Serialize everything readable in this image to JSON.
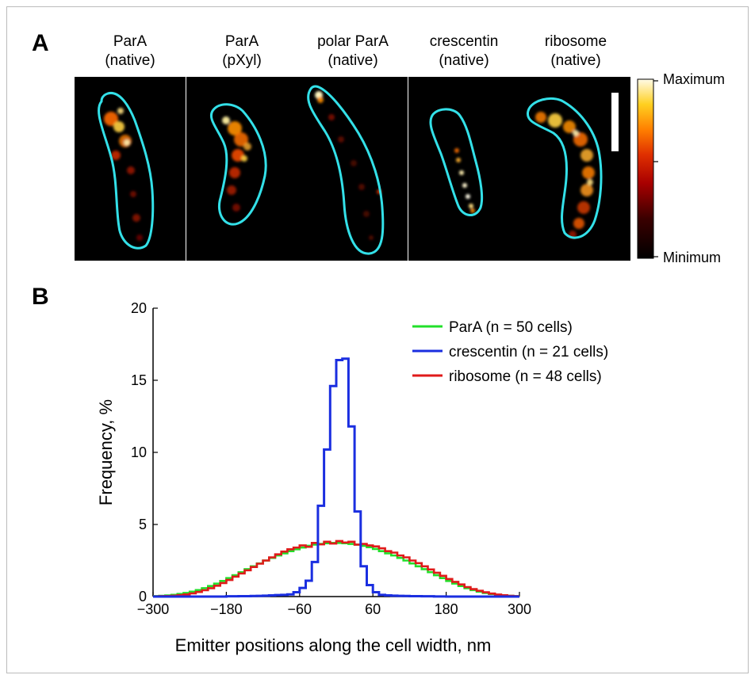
{
  "panel_a": {
    "letter": "A",
    "colorbar": {
      "max_label": "Maximum",
      "min_label": "Minimum"
    },
    "images": [
      {
        "line1": "ParA",
        "line2": "(native)"
      },
      {
        "line1": "ParA",
        "line2": "(pXyl)"
      },
      {
        "line1": "polar ParA",
        "line2": "(native)"
      },
      {
        "line1": "crescentin",
        "line2": "(native)"
      },
      {
        "line1": "ribosome",
        "line2": "(native)"
      }
    ],
    "colors": {
      "outline": "#33e0e8",
      "background": "#000000"
    }
  },
  "panel_b": {
    "letter": "B"
  },
  "chart_data": {
    "type": "line",
    "xlabel": "Emitter positions along the cell width, nm",
    "ylabel": "Frequency, %",
    "xlim": [
      -300,
      300
    ],
    "ylim": [
      0,
      20
    ],
    "xticks": [
      "−300",
      "−180",
      "−60",
      "60",
      "180",
      "300"
    ],
    "xtick_values": [
      -300,
      -180,
      -60,
      60,
      180,
      300
    ],
    "yticks": [
      "0",
      "5",
      "10",
      "15",
      "20"
    ],
    "ytick_values": [
      0,
      5,
      10,
      15,
      20
    ],
    "grid": false,
    "legend_position": "top-right",
    "bin_width": 10,
    "x_bin_starts": [
      -300,
      -290,
      -280,
      -270,
      -260,
      -250,
      -240,
      -230,
      -220,
      -210,
      -200,
      -190,
      -180,
      -170,
      -160,
      -150,
      -140,
      -130,
      -120,
      -110,
      -100,
      -90,
      -80,
      -70,
      -60,
      -50,
      -40,
      -30,
      -20,
      -10,
      0,
      10,
      20,
      30,
      40,
      50,
      60,
      70,
      80,
      90,
      100,
      110,
      120,
      130,
      140,
      150,
      160,
      170,
      180,
      190,
      200,
      210,
      220,
      230,
      240,
      250,
      260,
      270,
      280,
      290
    ],
    "series": [
      {
        "name": "ParA (n = 50 cells)",
        "color": "#22e02a",
        "values": [
          0.03,
          0.05,
          0.08,
          0.12,
          0.18,
          0.25,
          0.34,
          0.45,
          0.58,
          0.73,
          0.9,
          1.08,
          1.28,
          1.48,
          1.69,
          1.9,
          2.1,
          2.3,
          2.5,
          2.68,
          2.85,
          3.0,
          3.15,
          3.28,
          3.4,
          3.52,
          3.6,
          3.65,
          3.7,
          3.72,
          3.72,
          3.7,
          3.65,
          3.6,
          3.52,
          3.42,
          3.3,
          3.15,
          3.0,
          2.85,
          2.68,
          2.5,
          2.3,
          2.1,
          1.9,
          1.69,
          1.48,
          1.28,
          1.08,
          0.9,
          0.73,
          0.58,
          0.45,
          0.34,
          0.25,
          0.18,
          0.12,
          0.08,
          0.05,
          0.03
        ]
      },
      {
        "name": "crescentin (n = 21 cells)",
        "color": "#1a2ee0",
        "values": [
          0,
          0,
          0,
          0,
          0,
          0,
          0,
          0,
          0,
          0,
          0,
          0,
          0.02,
          0.02,
          0.03,
          0.03,
          0.04,
          0.05,
          0.06,
          0.08,
          0.1,
          0.12,
          0.15,
          0.3,
          0.6,
          1.1,
          2.4,
          6.3,
          10.2,
          14.6,
          16.4,
          16.5,
          11.8,
          5.9,
          2.1,
          0.8,
          0.3,
          0.12,
          0.08,
          0.06,
          0.05,
          0.04,
          0.03,
          0.03,
          0.02,
          0.02,
          0.01,
          0.01,
          0,
          0,
          0,
          0,
          0,
          0,
          0,
          0,
          0,
          0,
          0,
          0
        ]
      },
      {
        "name": "ribosome (n = 48 cells)",
        "color": "#e01a1a",
        "values": [
          0.02,
          0.03,
          0.04,
          0.06,
          0.1,
          0.15,
          0.22,
          0.32,
          0.44,
          0.58,
          0.75,
          0.94,
          1.15,
          1.38,
          1.6,
          1.82,
          2.05,
          2.28,
          2.5,
          2.72,
          2.93,
          3.12,
          3.28,
          3.4,
          3.55,
          3.45,
          3.72,
          3.62,
          3.8,
          3.68,
          3.85,
          3.75,
          3.8,
          3.6,
          3.65,
          3.55,
          3.48,
          3.35,
          3.15,
          3.05,
          2.85,
          2.72,
          2.5,
          2.32,
          2.1,
          1.88,
          1.65,
          1.44,
          1.22,
          1.02,
          0.84,
          0.66,
          0.52,
          0.4,
          0.3,
          0.21,
          0.14,
          0.09,
          0.05,
          0.03
        ]
      }
    ]
  }
}
